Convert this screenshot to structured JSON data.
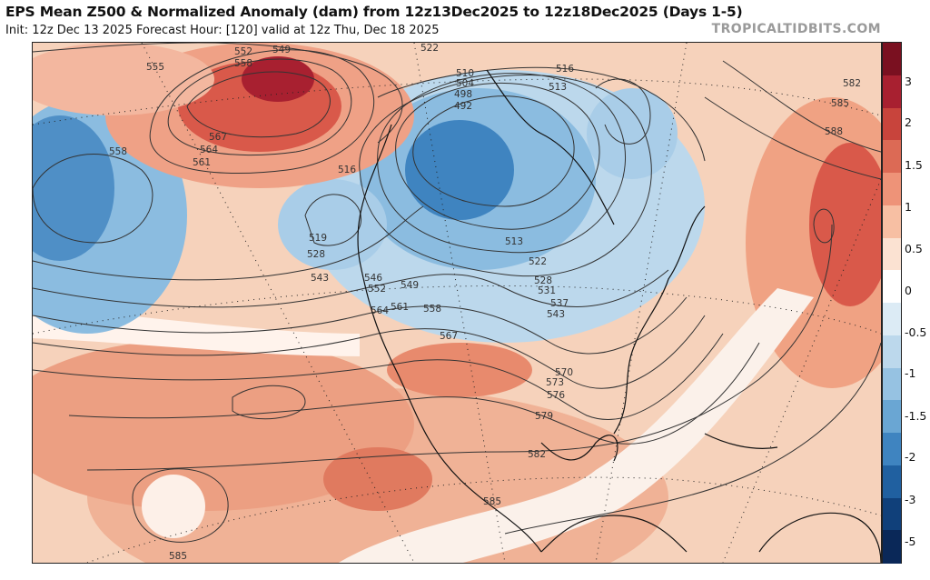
{
  "header": {
    "title": "EPS Mean Z500 & Normalized Anomaly (dam) from 12z13Dec2025 to 12z18Dec2025 (Days 1-5)",
    "subtitle": "Init: 12z Dec 13 2025   Forecast Hour: [120]   valid at 12z Thu, Dec 18 2025",
    "credit": "TROPICALTIDBITS.COM"
  },
  "colorbar": {
    "labels": [
      "3",
      "2",
      "1.5",
      "1",
      "0.5",
      "0",
      "-0.5",
      "-1",
      "-1.5",
      "-2",
      "-3",
      "-5"
    ],
    "colors": [
      "#7a1020",
      "#a82030",
      "#c8443c",
      "#dc6a55",
      "#ee9378",
      "#f7bfa3",
      "#fbe2d2",
      "#ffffff",
      "#dcebf5",
      "#bcd8ec",
      "#96c2e2",
      "#6aa6d3",
      "#3f84c0",
      "#2060a0",
      "#10407a",
      "#0a2858"
    ]
  },
  "map": {
    "contour_labels": [
      "555",
      "552",
      "549",
      "558",
      "567",
      "564",
      "561",
      "558",
      "522",
      "510",
      "504",
      "498",
      "492",
      "516",
      "513",
      "516",
      "519",
      "528",
      "543",
      "546",
      "552",
      "549",
      "564",
      "561",
      "558",
      "567",
      "513",
      "522",
      "528",
      "531",
      "537",
      "543",
      "570",
      "573",
      "576",
      "579",
      "582",
      "585",
      "585",
      "582",
      "585",
      "588"
    ]
  }
}
